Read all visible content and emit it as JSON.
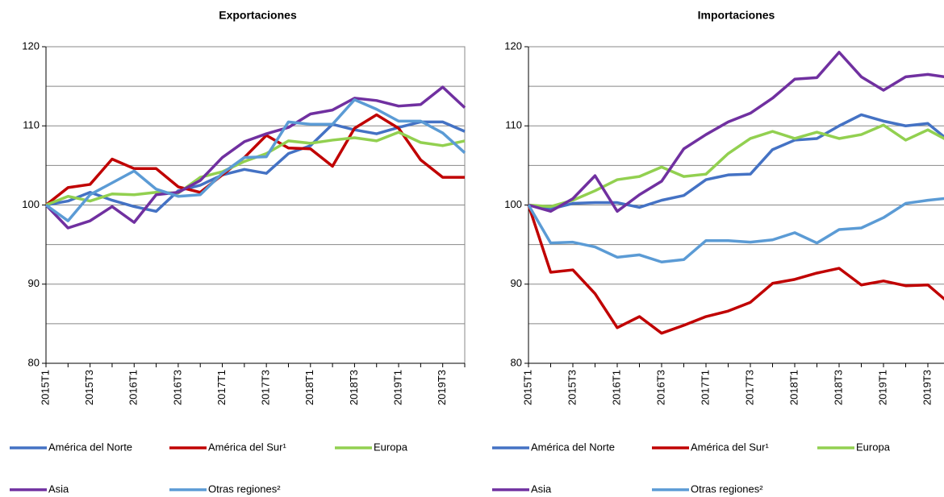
{
  "chart_data": [
    {
      "type": "line",
      "title": "Exportaciones",
      "categories": [
        "2015T1",
        null,
        "2015T3",
        null,
        "2016T1",
        null,
        "2016T3",
        null,
        "2017T1",
        null,
        "2017T3",
        null,
        "2018T1",
        null,
        "2018T3",
        null,
        "2019T1",
        null,
        "2019T3",
        null
      ],
      "series": [
        {
          "name": "América del Norte",
          "color": "#4472c4",
          "values": [
            100,
            100.5,
            101.6,
            100.6,
            99.8,
            99.2,
            101.8,
            102.5,
            103.8,
            104.5,
            104,
            106.5,
            107.5,
            110.2,
            109.5,
            109,
            109.8,
            110.5,
            110.5,
            109.3
          ]
        },
        {
          "name": "América del Sur¹",
          "color": "#c00000",
          "values": [
            100,
            102.2,
            102.6,
            105.8,
            104.6,
            104.6,
            102.3,
            101.6,
            103.8,
            106,
            108.8,
            107.2,
            107.1,
            104.9,
            109.7,
            111.4,
            109.7,
            105.7,
            103.5,
            103.5
          ]
        },
        {
          "name": "Europa",
          "color": "#92d050",
          "values": [
            100,
            101.1,
            100.5,
            101.4,
            101.3,
            101.6,
            101.5,
            103.5,
            104.2,
            105.5,
            106.5,
            108.1,
            107.8,
            108.2,
            108.5,
            108.1,
            109.2,
            107.9,
            107.5,
            108.1
          ]
        },
        {
          "name": "Asia",
          "color": "#7030a0",
          "values": [
            100,
            97.1,
            98,
            99.8,
            97.8,
            101.3,
            101.6,
            103.1,
            106,
            108,
            109,
            109.8,
            111.5,
            112,
            113.5,
            113.2,
            112.5,
            112.7,
            114.9,
            112.3
          ]
        },
        {
          "name": "Otras regiones²",
          "color": "#5b9bd5",
          "values": [
            100,
            98,
            101.3,
            102.8,
            104.3,
            102,
            101.1,
            101.3,
            104,
            106,
            106.1,
            110.5,
            110.2,
            110.2,
            113.3,
            112.1,
            110.6,
            110.6,
            109.1,
            106.6
          ]
        }
      ],
      "ylim": [
        80,
        120
      ],
      "yticks": [
        80,
        90,
        100,
        110,
        120
      ],
      "minor_yticks": [
        85,
        95,
        105,
        115
      ],
      "grid": true
    },
    {
      "type": "line",
      "title": "Importaciones",
      "categories": [
        "2015T1",
        null,
        "2015T3",
        null,
        "2016T1",
        null,
        "2016T3",
        null,
        "2017T1",
        null,
        "2017T3",
        null,
        "2018T1",
        null,
        "2018T3",
        null,
        "2019T1",
        null,
        "2019T3",
        null
      ],
      "series": [
        {
          "name": "América del Norte",
          "color": "#4472c4",
          "values": [
            100,
            99.5,
            100.2,
            100.3,
            100.3,
            99.7,
            100.6,
            101.2,
            103.2,
            103.8,
            103.9,
            107,
            108.2,
            108.4,
            110,
            111.4,
            110.6,
            110,
            110.3,
            108
          ]
        },
        {
          "name": "América del Sur¹",
          "color": "#c00000",
          "values": [
            100,
            91.5,
            91.8,
            88.8,
            84.5,
            85.9,
            83.8,
            84.8,
            85.9,
            86.6,
            87.7,
            90.1,
            90.6,
            91.4,
            92,
            89.9,
            90.4,
            89.8,
            89.9,
            87.5
          ]
        },
        {
          "name": "Europa",
          "color": "#92d050",
          "values": [
            100,
            99.8,
            100.6,
            101.8,
            103.2,
            103.6,
            104.8,
            103.6,
            103.9,
            106.5,
            108.4,
            109.3,
            108.4,
            109.2,
            108.4,
            108.9,
            110.1,
            108.2,
            109.5,
            108
          ]
        },
        {
          "name": "Asia",
          "color": "#7030a0",
          "values": [
            100,
            99.2,
            100.8,
            103.7,
            99.2,
            101.3,
            103,
            107.1,
            108.9,
            110.5,
            111.6,
            113.5,
            115.9,
            116.1,
            119.3,
            116.2,
            114.5,
            116.2,
            116.5,
            116.1
          ]
        },
        {
          "name": "Otras regiones²",
          "color": "#5b9bd5",
          "values": [
            100,
            95.2,
            95.3,
            94.7,
            93.4,
            93.7,
            92.8,
            93.1,
            95.5,
            95.5,
            95.3,
            95.6,
            96.5,
            95.2,
            96.9,
            97.1,
            98.4,
            100.2,
            100.6,
            100.9
          ]
        }
      ],
      "ylim": [
        80,
        120
      ],
      "yticks": [
        80,
        90,
        100,
        110,
        120
      ],
      "minor_yticks": [
        85,
        95,
        105,
        115
      ],
      "grid": true
    }
  ]
}
